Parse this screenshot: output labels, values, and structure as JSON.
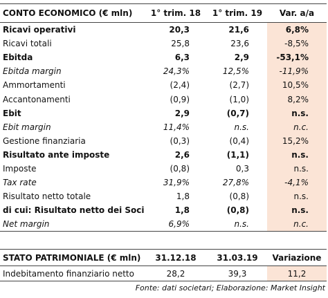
{
  "income_table": {
    "header": [
      "CONTO ECONOMICO (€ mln)",
      "1° trim. 18",
      "1° trim. 19",
      "Var. a/a"
    ],
    "rows": [
      {
        "style": "bold",
        "cells": [
          "Ricavi operativi",
          "20,3",
          "21,6",
          "6,8%"
        ]
      },
      {
        "style": "normal",
        "cells": [
          "Ricavi totali",
          "25,8",
          "23,6",
          "-8,5%"
        ]
      },
      {
        "style": "bold",
        "cells": [
          "Ebitda",
          "6,3",
          "2,9",
          "-53,1%"
        ]
      },
      {
        "style": "italic",
        "cells": [
          "Ebitda margin",
          "24,3%",
          "12,5%",
          "-11,9%"
        ]
      },
      {
        "style": "normal",
        "cells": [
          "Ammortamenti",
          "(2,4)",
          "(2,7)",
          "10,5%"
        ]
      },
      {
        "style": "normal",
        "cells": [
          "Accantonamenti",
          "(0,9)",
          "(1,0)",
          "8,2%"
        ]
      },
      {
        "style": "bold",
        "cells": [
          "Ebit",
          "2,9",
          "(0,7)",
          "n.s."
        ]
      },
      {
        "style": "italic",
        "cells": [
          "Ebit margin",
          "11,4%",
          "n.s.",
          "n.c."
        ]
      },
      {
        "style": "normal",
        "cells": [
          "Gestione finanziaria",
          "(0,3)",
          "(0,4)",
          "15,2%"
        ]
      },
      {
        "style": "bold",
        "cells": [
          "Risultato ante imposte",
          "2,6",
          "(1,1)",
          "n.s."
        ]
      },
      {
        "style": "normal",
        "cells": [
          "Imposte",
          "(0,8)",
          "0,3",
          "n.s."
        ]
      },
      {
        "style": "italic",
        "cells": [
          "Tax rate",
          "31,9%",
          "27,8%",
          "-4,1%"
        ]
      },
      {
        "style": "normal",
        "cells": [
          "Risultato netto totale",
          "1,8",
          "(0,8)",
          "n.s."
        ]
      },
      {
        "style": "bold",
        "cells": [
          "di cui: Risultato netto dei Soci",
          "1,8",
          "(0,8)",
          "n.s."
        ]
      },
      {
        "style": "italic",
        "cells": [
          "Net margin",
          "6,9%",
          "n.s.",
          "n.c."
        ]
      }
    ]
  },
  "balance_table": {
    "header": [
      "STATO PATRIMONIALE (€ mln)",
      "31.12.18",
      "31.03.19",
      "Variazione"
    ],
    "rows": [
      {
        "style": "normal",
        "cells": [
          "Indebitamento finanziario netto",
          "28,2",
          "39,3",
          "11,2"
        ]
      }
    ]
  },
  "footer": "Fonte: dati societari; Elaborazione: Market Insight"
}
